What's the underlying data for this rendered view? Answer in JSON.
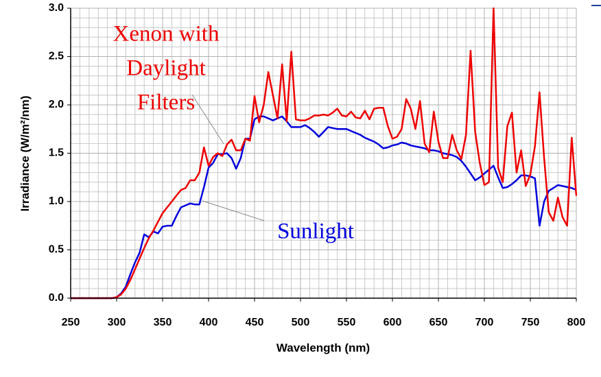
{
  "chart_data": {
    "type": "line",
    "xlabel": "Wavelength (nm)",
    "ylabel": "Irradiance (W/m²/nm)",
    "x": [
      250,
      255,
      260,
      265,
      270,
      275,
      280,
      285,
      290,
      295,
      300,
      305,
      310,
      315,
      320,
      325,
      330,
      335,
      340,
      345,
      350,
      355,
      360,
      365,
      370,
      375,
      380,
      385,
      390,
      395,
      400,
      405,
      410,
      415,
      420,
      425,
      430,
      435,
      440,
      445,
      450,
      455,
      460,
      465,
      470,
      475,
      480,
      485,
      490,
      495,
      500,
      505,
      510,
      515,
      520,
      525,
      530,
      535,
      540,
      545,
      550,
      555,
      560,
      565,
      570,
      575,
      580,
      585,
      590,
      595,
      600,
      605,
      610,
      615,
      620,
      625,
      630,
      635,
      640,
      645,
      650,
      655,
      660,
      665,
      670,
      675,
      680,
      685,
      690,
      695,
      700,
      705,
      710,
      715,
      720,
      725,
      730,
      735,
      740,
      745,
      750,
      755,
      760,
      765,
      770,
      775,
      780,
      785,
      790,
      795,
      800
    ],
    "series": [
      {
        "name": "Sunlight",
        "color": "#0000dd",
        "values": [
          0,
          0,
          0,
          0,
          0,
          0,
          0,
          0,
          0,
          0,
          0.01,
          0.05,
          0.12,
          0.25,
          0.37,
          0.47,
          0.66,
          0.63,
          0.69,
          0.67,
          0.74,
          0.75,
          0.75,
          0.85,
          0.94,
          0.96,
          0.98,
          0.97,
          0.97,
          1.15,
          1.35,
          1.4,
          1.49,
          1.49,
          1.5,
          1.45,
          1.34,
          1.45,
          1.65,
          1.65,
          1.85,
          1.88,
          1.88,
          1.86,
          1.84,
          1.86,
          1.88,
          1.83,
          1.77,
          1.77,
          1.77,
          1.79,
          1.76,
          1.72,
          1.67,
          1.72,
          1.77,
          1.76,
          1.75,
          1.75,
          1.75,
          1.73,
          1.71,
          1.69,
          1.66,
          1.64,
          1.62,
          1.59,
          1.55,
          1.56,
          1.58,
          1.59,
          1.61,
          1.6,
          1.58,
          1.57,
          1.56,
          1.55,
          1.53,
          1.53,
          1.52,
          1.5,
          1.49,
          1.48,
          1.46,
          1.42,
          1.36,
          1.29,
          1.22,
          1.25,
          1.29,
          1.33,
          1.37,
          1.25,
          1.14,
          1.15,
          1.18,
          1.22,
          1.27,
          1.27,
          1.26,
          1.24,
          0.75,
          1.0,
          1.11,
          1.14,
          1.17,
          1.16,
          1.15,
          1.14,
          1.12
        ]
      },
      {
        "name": "Xenon with Daylight Filters",
        "color": "#ee0000",
        "values": [
          0,
          0,
          0,
          0,
          0,
          0,
          0,
          0,
          0,
          0,
          0.01,
          0.04,
          0.1,
          0.19,
          0.3,
          0.41,
          0.52,
          0.62,
          0.7,
          0.79,
          0.88,
          0.94,
          1.0,
          1.06,
          1.12,
          1.14,
          1.22,
          1.22,
          1.3,
          1.56,
          1.37,
          1.46,
          1.5,
          1.47,
          1.59,
          1.64,
          1.53,
          1.53,
          1.65,
          1.63,
          2.09,
          1.82,
          2.0,
          2.34,
          2.1,
          1.86,
          2.42,
          1.83,
          2.55,
          1.85,
          1.84,
          1.84,
          1.86,
          1.89,
          1.89,
          1.9,
          1.89,
          1.92,
          1.96,
          1.89,
          1.88,
          1.93,
          1.87,
          1.86,
          1.94,
          1.85,
          1.96,
          1.97,
          1.97,
          1.78,
          1.65,
          1.67,
          1.75,
          2.06,
          1.96,
          1.75,
          2.04,
          1.6,
          1.51,
          1.93,
          1.62,
          1.45,
          1.45,
          1.69,
          1.53,
          1.44,
          1.69,
          2.56,
          1.72,
          1.4,
          1.17,
          1.2,
          3.0,
          1.35,
          1.2,
          1.78,
          1.92,
          1.3,
          1.53,
          1.16,
          1.28,
          1.57,
          2.13,
          1.45,
          0.89,
          0.8,
          1.04,
          0.84,
          0.75,
          1.66,
          1.06
        ]
      }
    ],
    "annotations": [
      {
        "lines": [
          "Xenon with",
          "Daylight",
          "Filters"
        ],
        "color": "#ee0000"
      },
      {
        "lines": [
          "Sunlight"
        ],
        "color": "#0000dd"
      }
    ],
    "xlim": [
      250,
      800
    ],
    "ylim": [
      0,
      3
    ],
    "xticks": [
      250,
      300,
      350,
      400,
      450,
      500,
      550,
      600,
      650,
      700,
      750,
      800
    ],
    "yticks": [
      {
        "value": 0,
        "label": "0.0"
      },
      0.5,
      {
        "value": 1,
        "label": "1.0"
      },
      1.5,
      {
        "value": 2,
        "label": "2.0"
      },
      2.5,
      {
        "value": 3,
        "label": "3.0"
      }
    ],
    "grid": true,
    "minor_grid": true
  }
}
